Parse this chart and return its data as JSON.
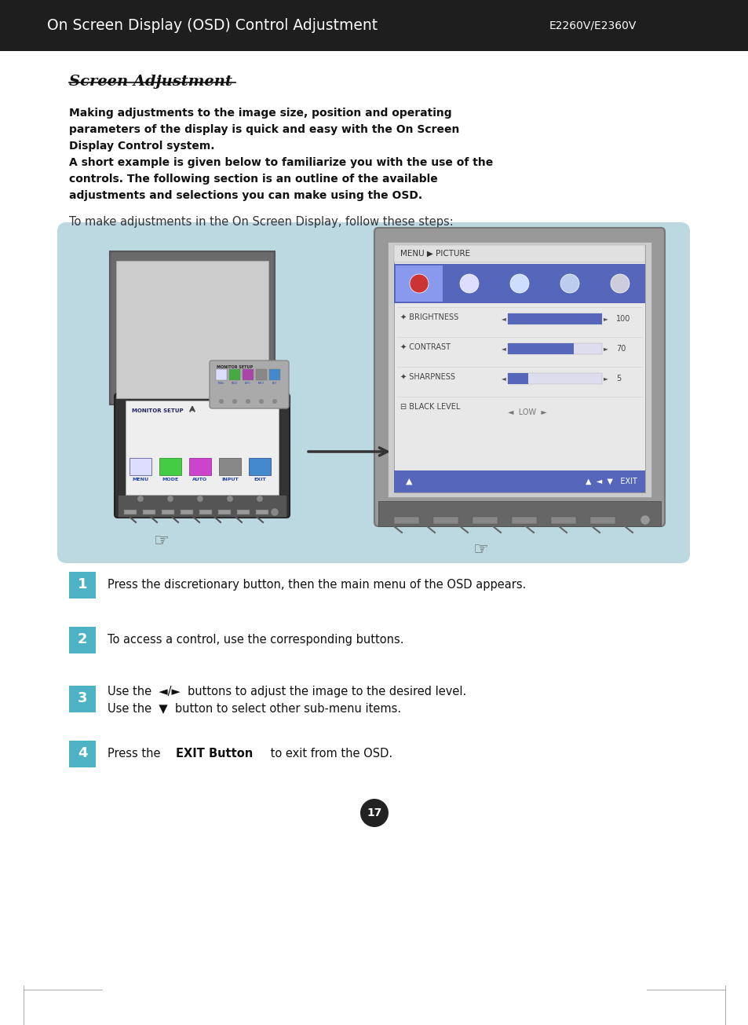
{
  "page_bg": "#ffffff",
  "header_bg": "#1e1e1e",
  "header_text": "On Screen Display (OSD) Control Adjustment",
  "header_model": "E2260V/E2360V",
  "header_text_color": "#ffffff",
  "title": "Screen Adjustment",
  "bold_para_line1": "Making adjustments to the image size, position and operating",
  "bold_para_line2": "parameters of the display is quick and easy with the On Screen",
  "bold_para_line3": "Display Control system.",
  "bold_para_line4": "A short example is given below to familiarize you with the use of the",
  "bold_para_line5": "controls. The following section is an outline of the available",
  "bold_para_line6": "adjustments and selections you can make using the OSD.",
  "intro_text": "To make adjustments in the On Screen Display, follow these steps:",
  "diagram_bg": "#bcd8e0",
  "step_bg": "#4db3c4",
  "step_number_color": "#ffffff",
  "page_num": "17",
  "monitor_outer": "#6a6a6a",
  "monitor_screen": "#c8c8c8",
  "monitor_stand": "#888888",
  "osd_blue": "#4455aa",
  "osd_light": "#ccccdd",
  "osd_bar_full": "#5566bb",
  "osd_bar_bg": "#ddddee",
  "right_mon_outer": "#777777",
  "right_mon_screen_bg": "#dddddd",
  "nav_bar_blue": "#4455aa"
}
